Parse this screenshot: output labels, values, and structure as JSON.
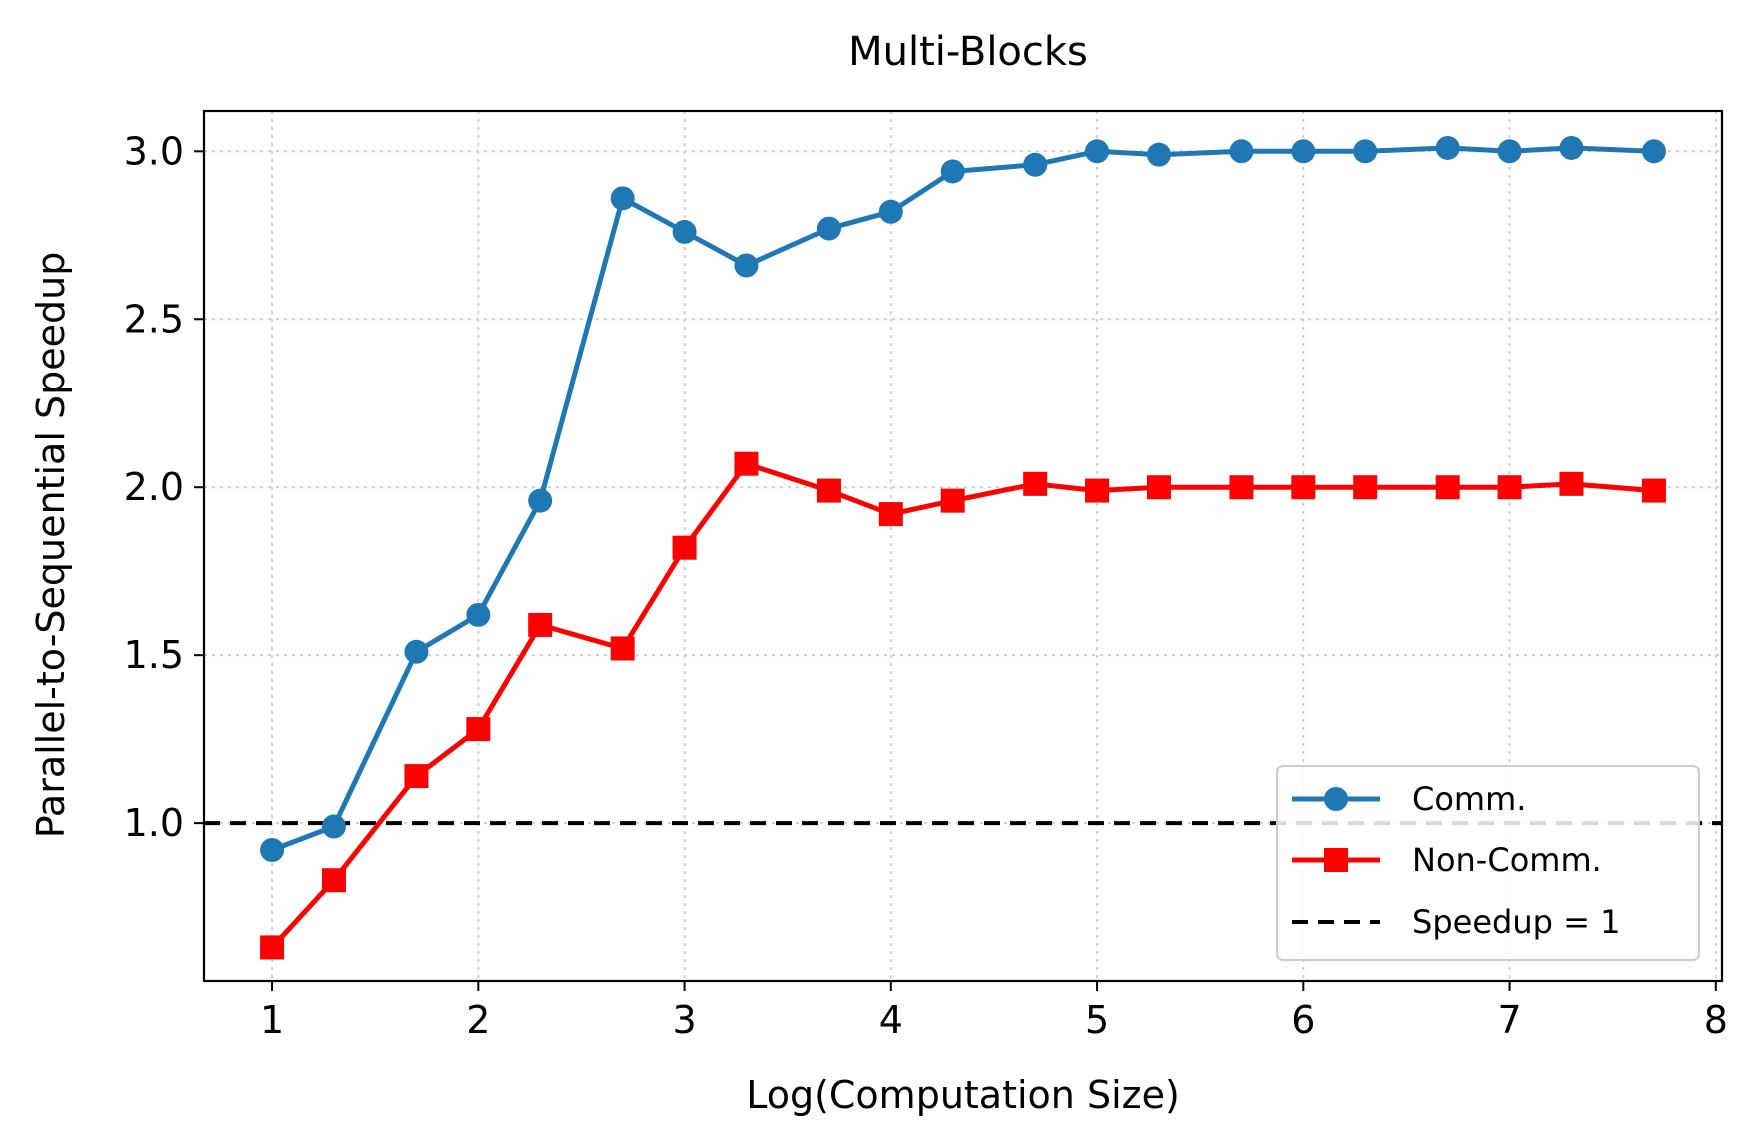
{
  "chart_data": {
    "type": "line",
    "title": "Multi-Blocks",
    "xlabel": "Log(Computation Size)",
    "ylabel": "Parallel-to-Sequential Speedup",
    "xlim": [
      0.67,
      8.03
    ],
    "ylim": [
      0.53,
      3.12
    ],
    "xticks": [
      1,
      2,
      3,
      4,
      5,
      6,
      7,
      8
    ],
    "yticks": [
      1.0,
      1.5,
      2.0,
      2.5,
      3.0
    ],
    "xtick_labels": [
      "1",
      "2",
      "3",
      "4",
      "5",
      "6",
      "7",
      "8"
    ],
    "ytick_labels": [
      "1.0",
      "1.5",
      "2.0",
      "2.5",
      "3.0"
    ],
    "grid": true,
    "legend_position": "lower-right",
    "x": [
      1.0,
      1.3,
      1.7,
      2.0,
      2.3,
      2.7,
      3.0,
      3.3,
      3.7,
      4.0,
      4.3,
      4.7,
      5.0,
      5.3,
      5.7,
      6.0,
      6.3,
      6.7,
      7.0,
      7.3,
      7.7
    ],
    "series": [
      {
        "name": "Comm.",
        "color": "#1f77b4",
        "marker": "circle",
        "values": [
          0.92,
          0.99,
          1.51,
          1.62,
          1.96,
          2.86,
          2.76,
          2.66,
          2.77,
          2.82,
          2.94,
          2.96,
          3.0,
          2.99,
          3.0,
          3.0,
          3.0,
          3.01,
          3.0,
          3.01,
          3.0
        ]
      },
      {
        "name": "Non-Comm.",
        "color": "#ff0000",
        "marker": "square",
        "values": [
          0.63,
          0.83,
          1.14,
          1.28,
          1.59,
          1.52,
          1.82,
          2.07,
          1.99,
          1.92,
          1.96,
          2.01,
          1.99,
          2.0,
          2.0,
          2.0,
          2.0,
          2.0,
          2.0,
          2.01,
          1.99
        ]
      }
    ],
    "reference_line": {
      "name": "Speedup = 1",
      "y": 1.0,
      "color": "#000000",
      "style": "dashed"
    }
  }
}
